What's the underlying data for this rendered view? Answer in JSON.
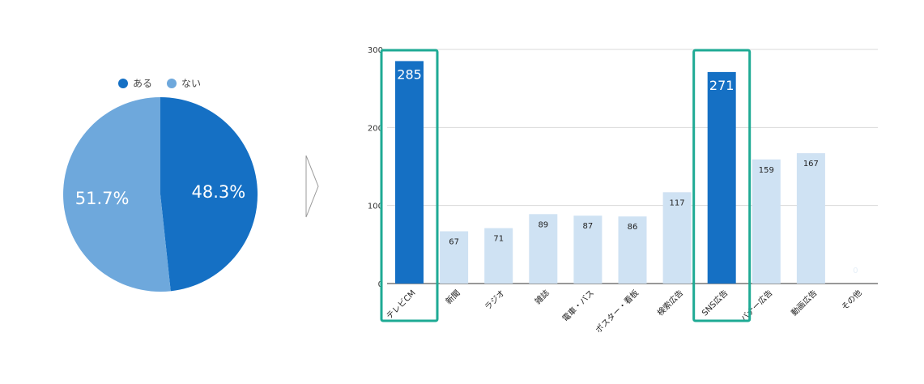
{
  "chart_data": [
    {
      "type": "pie",
      "labels": [
        "ある",
        "ない"
      ],
      "values": [
        48.3,
        51.7
      ],
      "value_labels": [
        "48.3%",
        "51.7%"
      ],
      "colors": [
        "#1570C4",
        "#6EA8DC"
      ],
      "legend_position": "top"
    },
    {
      "type": "bar",
      "categories": [
        "テレビCM",
        "新聞",
        "ラジオ",
        "雑誌",
        "電車・バス",
        "ポスター・看板",
        "検索広告",
        "SNS広告",
        "バナー広告",
        "動画広告",
        "その他"
      ],
      "values": [
        285,
        67,
        71,
        89,
        87,
        86,
        117,
        271,
        159,
        167,
        0
      ],
      "data_labels": [
        "285",
        "67",
        "71",
        "89",
        "87",
        "86",
        "117",
        "271",
        "159",
        "167",
        "0"
      ],
      "highlighted": [
        true,
        false,
        false,
        false,
        false,
        false,
        false,
        true,
        false,
        false,
        false
      ],
      "y_ticks": [
        "0",
        "100",
        "200",
        "300"
      ],
      "ylim": [
        0,
        300
      ],
      "grid": true,
      "colors": {
        "highlight": "#1570C4",
        "normal": "#CFE2F3",
        "frame": "#1EAA94",
        "grid": "#D9D9D9",
        "axis": "#333333"
      }
    }
  ]
}
